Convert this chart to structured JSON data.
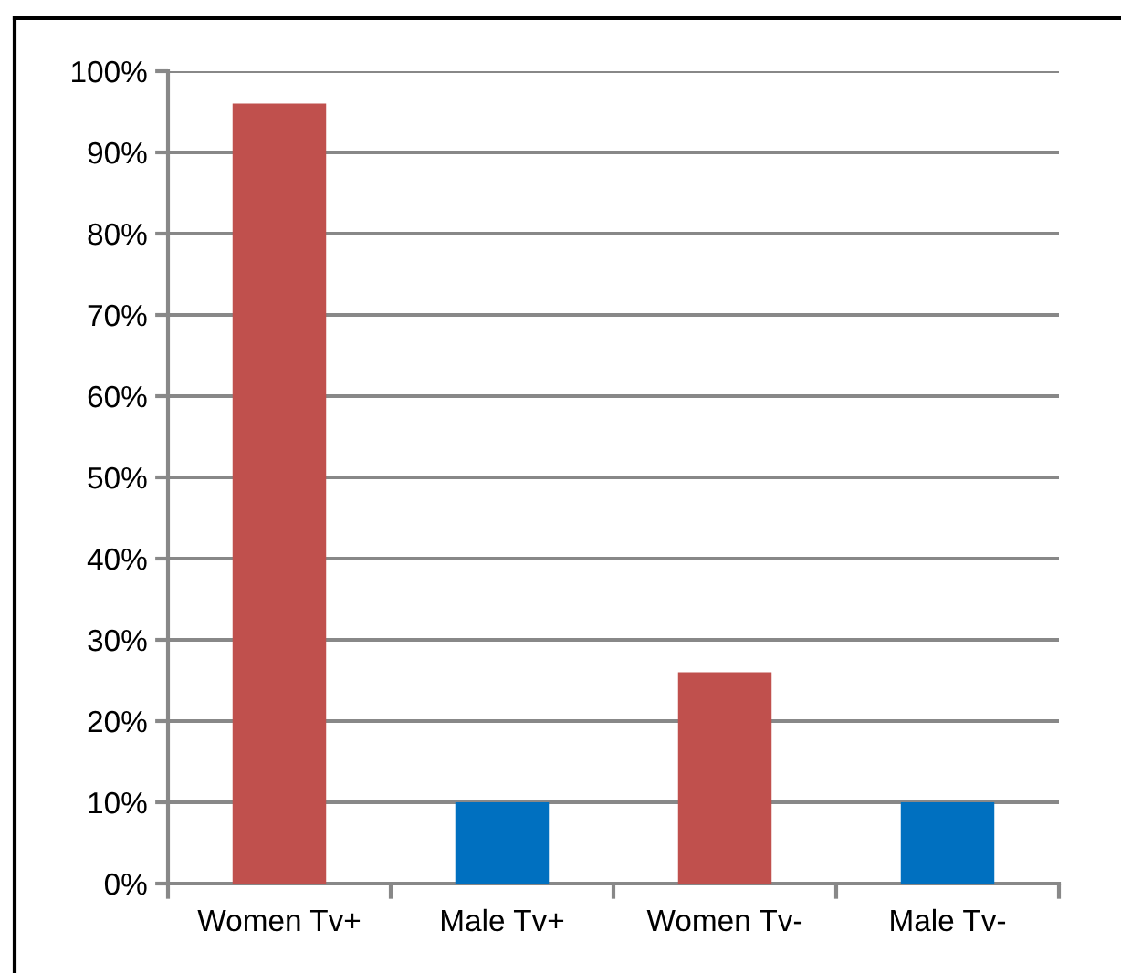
{
  "chart_data": {
    "type": "bar",
    "categories": [
      "Women Tv+",
      "Male Tv+",
      "Women Tv-",
      "Male Tv-"
    ],
    "values": [
      96,
      10,
      26,
      10
    ],
    "colors": [
      "#c0504d",
      "#0070c0",
      "#c0504d",
      "#0070c0"
    ],
    "ylim": [
      0,
      100
    ],
    "yticks": [
      {
        "value": 0,
        "label": "0%"
      },
      {
        "value": 10,
        "label": "10%"
      },
      {
        "value": 20,
        "label": "20%"
      },
      {
        "value": 30,
        "label": "30%"
      },
      {
        "value": 40,
        "label": "40%"
      },
      {
        "value": 50,
        "label": "50%"
      },
      {
        "value": 60,
        "label": "60%"
      },
      {
        "value": 70,
        "label": "70%"
      },
      {
        "value": 80,
        "label": "80%"
      },
      {
        "value": 90,
        "label": "90%"
      },
      {
        "value": 100,
        "label": "100%"
      }
    ],
    "grid": "y"
  }
}
